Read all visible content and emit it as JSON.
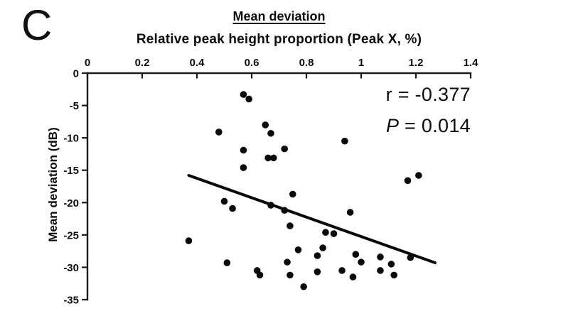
{
  "panel_label": "C",
  "header": {
    "title": "Mean deviation",
    "x_axis_title": "Relative peak height proportion (Peak X, %)",
    "y_axis_title": "Mean deviation (dB)"
  },
  "annotations": {
    "r_text": "r = -0.377",
    "p_italic": "P",
    "p_rest": " = 0.014"
  },
  "chart_data": {
    "type": "scatter",
    "title": "Mean deviation",
    "xlabel": "Relative peak height proportion (Peak X, %)",
    "ylabel": "Mean deviation (dB)",
    "xlim": [
      0,
      1.4
    ],
    "ylim": [
      -35,
      0
    ],
    "x_axis_position": "top",
    "grid": false,
    "legend": false,
    "pearson_r": -0.377,
    "p_value": 0.014,
    "x_ticks": [
      0,
      0.2,
      0.4,
      0.6,
      0.8,
      1,
      1.2,
      1.4
    ],
    "x_tick_labels": [
      "0",
      "0.2",
      "0.4",
      "0.6",
      "0.8",
      "1",
      "1.2",
      "1.4"
    ],
    "y_ticks": [
      0,
      -5,
      -10,
      -15,
      -20,
      -25,
      -30,
      -35
    ],
    "y_tick_labels": [
      "0",
      "-5",
      "-10",
      "-15",
      "-20",
      "-25",
      "-30",
      "-35"
    ],
    "trendline": {
      "x1": 0.37,
      "y1": -15.8,
      "x2": 1.27,
      "y2": -29.3
    },
    "points": [
      [
        0.57,
        -3.3
      ],
      [
        0.59,
        -4.0
      ],
      [
        0.48,
        -9.1
      ],
      [
        0.65,
        -8.0
      ],
      [
        0.67,
        -9.3
      ],
      [
        0.94,
        -10.5
      ],
      [
        0.72,
        -11.7
      ],
      [
        0.57,
        -11.9
      ],
      [
        0.66,
        -13.1
      ],
      [
        0.68,
        -13.1
      ],
      [
        0.57,
        -14.6
      ],
      [
        0.75,
        -18.7
      ],
      [
        0.5,
        -19.8
      ],
      [
        0.53,
        -20.9
      ],
      [
        0.67,
        -20.4
      ],
      [
        0.72,
        -21.2
      ],
      [
        0.96,
        -21.5
      ],
      [
        0.74,
        -23.6
      ],
      [
        0.87,
        -24.6
      ],
      [
        0.9,
        -24.8
      ],
      [
        0.37,
        -25.9
      ],
      [
        0.86,
        -27.0
      ],
      [
        0.77,
        -27.3
      ],
      [
        0.84,
        -28.2
      ],
      [
        0.98,
        -28.0
      ],
      [
        1.07,
        -28.4
      ],
      [
        1.18,
        -28.5
      ],
      [
        0.51,
        -29.3
      ],
      [
        0.73,
        -29.2
      ],
      [
        1.0,
        -29.2
      ],
      [
        1.11,
        -29.5
      ],
      [
        0.62,
        -30.5
      ],
      [
        0.84,
        -30.7
      ],
      [
        0.93,
        -30.5
      ],
      [
        1.07,
        -30.5
      ],
      [
        0.63,
        -31.2
      ],
      [
        0.74,
        -31.2
      ],
      [
        0.97,
        -31.5
      ],
      [
        1.12,
        -31.2
      ],
      [
        0.79,
        -33.0
      ],
      [
        1.17,
        -16.6
      ],
      [
        1.21,
        -15.8
      ]
    ],
    "colors": {
      "points": "#0a0a0a",
      "trendline": "#0a0a0a",
      "axis": "#1a1a1a",
      "text": "#0d0d0d"
    }
  }
}
